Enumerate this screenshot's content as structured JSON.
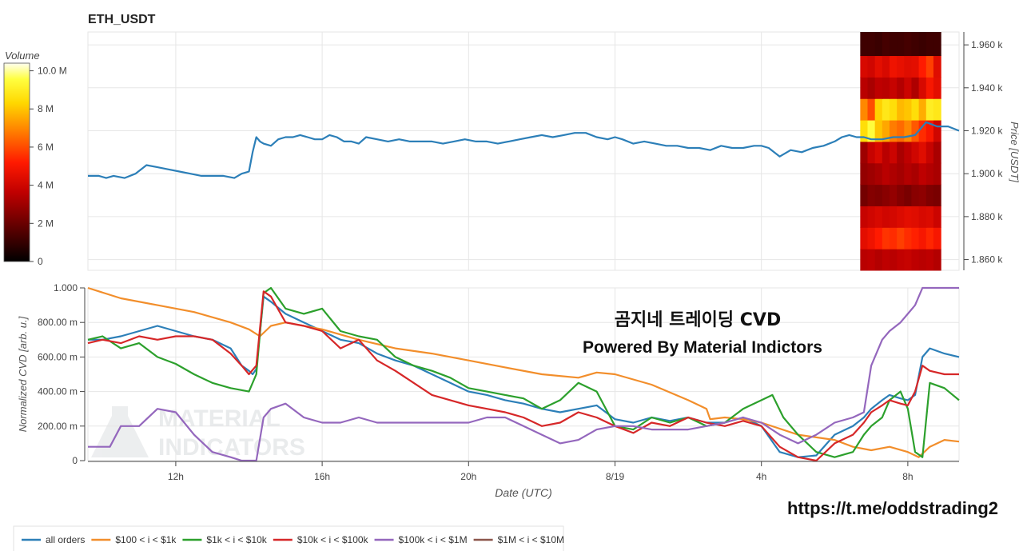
{
  "title": "ETH_USDT",
  "chart_data": [
    {
      "type": "line",
      "role": "price",
      "ylabel": "Price [USDT]",
      "ylim": [
        1.855,
        1.966
      ],
      "ytick_values": [
        1.86,
        1.88,
        1.9,
        1.92,
        1.94,
        1.96
      ],
      "ytick_labels": [
        "1.860 k",
        "1.880 k",
        "1.900 k",
        "1.920 k",
        "1.940 k",
        "1.960 k"
      ],
      "xlim": [
        9.6,
        33.4
      ],
      "grid": true,
      "series": [
        {
          "color": "#2c7fb8",
          "x": [
            9.6,
            9.9,
            10.1,
            10.3,
            10.6,
            10.9,
            11.2,
            11.5,
            11.8,
            12.1,
            12.4,
            12.7,
            13.0,
            13.3,
            13.6,
            13.8,
            14.0,
            14.1,
            14.2,
            14.3,
            14.4,
            14.6,
            14.8,
            15.0,
            15.2,
            15.4,
            15.6,
            15.8,
            16.0,
            16.2,
            16.4,
            16.6,
            16.8,
            17.0,
            17.2,
            17.5,
            17.8,
            18.1,
            18.4,
            18.7,
            19.0,
            19.3,
            19.6,
            19.9,
            20.2,
            20.5,
            20.8,
            21.1,
            21.4,
            21.7,
            22.0,
            22.3,
            22.6,
            22.9,
            23.2,
            23.5,
            23.8,
            24.0,
            24.2,
            24.5,
            24.8,
            25.1,
            25.4,
            25.7,
            26.0,
            26.3,
            26.6,
            26.9,
            27.2,
            27.5,
            27.8,
            28.0,
            28.2,
            28.5,
            28.8,
            29.1,
            29.4,
            29.7,
            30.0,
            30.2,
            30.4,
            30.6,
            30.8,
            31.0,
            31.3,
            31.6,
            31.9,
            32.2,
            32.5,
            32.8,
            33.1,
            33.4
          ],
          "y": [
            1.899,
            1.899,
            1.898,
            1.899,
            1.898,
            1.9,
            1.904,
            1.903,
            1.902,
            1.901,
            1.9,
            1.899,
            1.899,
            1.899,
            1.898,
            1.9,
            1.901,
            1.91,
            1.917,
            1.915,
            1.914,
            1.913,
            1.916,
            1.917,
            1.917,
            1.918,
            1.917,
            1.916,
            1.916,
            1.918,
            1.917,
            1.915,
            1.915,
            1.914,
            1.917,
            1.916,
            1.915,
            1.916,
            1.915,
            1.915,
            1.915,
            1.914,
            1.915,
            1.916,
            1.915,
            1.915,
            1.914,
            1.915,
            1.916,
            1.917,
            1.918,
            1.917,
            1.918,
            1.919,
            1.919,
            1.917,
            1.916,
            1.917,
            1.916,
            1.914,
            1.915,
            1.914,
            1.913,
            1.913,
            1.912,
            1.912,
            1.911,
            1.913,
            1.912,
            1.912,
            1.913,
            1.913,
            1.912,
            1.908,
            1.911,
            1.91,
            1.912,
            1.913,
            1.915,
            1.917,
            1.918,
            1.917,
            1.917,
            1.916,
            1.916,
            1.917,
            1.917,
            1.918,
            1.924,
            1.922,
            1.922,
            1.92
          ]
        }
      ]
    },
    {
      "type": "heatmap",
      "role": "volume-profile",
      "colorbar_title": "Volume",
      "colorbar_range": [
        0,
        10.4
      ],
      "colorbar_tick_values": [
        0,
        2,
        4,
        6,
        8,
        10
      ],
      "colorbar_tick_labels": [
        "0",
        "2 M",
        "4 M",
        "6 M",
        "8 M",
        "10.0 M"
      ],
      "row_low_prices": [
        1.855,
        1.865,
        1.875,
        1.885,
        1.895,
        1.905,
        1.915,
        1.925,
        1.935,
        1.945,
        1.955
      ],
      "row_high_prices": [
        1.865,
        1.875,
        1.885,
        1.895,
        1.905,
        1.915,
        1.925,
        1.935,
        1.945,
        1.955,
        1.966
      ],
      "x_start": 30.7,
      "x_end": 32.9,
      "cells": [
        [
          3.5,
          3.6,
          3.4,
          3.6,
          3.5,
          3.7,
          3.8,
          3.6,
          3.5,
          3.6,
          3.4
        ],
        [
          4.5,
          4.8,
          5.2,
          5.6,
          5.5,
          5.8,
          5.5,
          5.3,
          5.0,
          5.4,
          5.0
        ],
        [
          3.8,
          4.0,
          4.2,
          4.0,
          4.1,
          4.3,
          4.5,
          4.4,
          4.2,
          4.3,
          3.9
        ],
        [
          2.2,
          2.5,
          2.4,
          2.6,
          2.8,
          2.5,
          2.3,
          2.6,
          2.7,
          2.4,
          2.3
        ],
        [
          2.8,
          3.0,
          3.2,
          3.5,
          3.3,
          3.1,
          3.4,
          3.2,
          3.6,
          3.4,
          3.2
        ],
        [
          3.0,
          3.8,
          4.2,
          3.5,
          3.9,
          3.2,
          3.6,
          4.0,
          4.4,
          3.8,
          3.2
        ],
        [
          8.5,
          9.5,
          8.0,
          7.5,
          6.8,
          6.5,
          7.0,
          6.2,
          5.5,
          5.0,
          4.0
        ],
        [
          7.0,
          6.0,
          8.2,
          8.8,
          8.5,
          7.8,
          8.0,
          8.5,
          7.6,
          9.0,
          8.8
        ],
        [
          3.5,
          3.2,
          3.6,
          3.5,
          3.8,
          3.4,
          3.9,
          3.3,
          4.2,
          5.0,
          4.5
        ],
        [
          4.2,
          4.0,
          4.5,
          4.2,
          4.8,
          4.6,
          4.4,
          4.5,
          5.2,
          5.8,
          4.4
        ],
        [
          1.2,
          1.2,
          1.1,
          1.3,
          1.2,
          1.2,
          1.3,
          1.2,
          1.1,
          1.2,
          1.2
        ]
      ]
    },
    {
      "type": "line",
      "role": "cvd",
      "xlabel": "Date (UTC)",
      "ylabel": "Normalized CVD [arb. u.]",
      "ylim": [
        0,
        1.0
      ],
      "ytick_values": [
        0,
        0.2,
        0.4,
        0.6,
        0.8,
        1.0
      ],
      "ytick_labels": [
        "0",
        "200.00 m",
        "400.00 m",
        "600.00 m",
        "800.00 m",
        "1.000"
      ],
      "xlim": [
        9.6,
        33.4
      ],
      "xtick_values": [
        12,
        16,
        20,
        24,
        28,
        32
      ],
      "xtick_labels": [
        "12h",
        "16h",
        "20h",
        "8/19",
        "4h",
        "8h"
      ],
      "grid": true,
      "series": [
        {
          "name": "all orders",
          "color": "#2c7fb8",
          "x": [
            9.6,
            10.0,
            10.5,
            11.0,
            11.5,
            12.0,
            12.5,
            13.0,
            13.5,
            13.8,
            14.0,
            14.1,
            14.2,
            14.4,
            14.6,
            15.0,
            15.5,
            16.0,
            16.5,
            17.0,
            17.5,
            18.0,
            18.5,
            19.0,
            19.5,
            20.0,
            20.5,
            21.0,
            21.5,
            22.0,
            22.5,
            23.0,
            23.5,
            24.0,
            24.5,
            25.0,
            25.5,
            26.0,
            26.5,
            27.0,
            27.5,
            28.0,
            28.5,
            29.0,
            29.5,
            30.0,
            30.5,
            30.8,
            31.0,
            31.3,
            31.5,
            31.8,
            32.0,
            32.2,
            32.4,
            32.6,
            33.0,
            33.4
          ],
          "y": [
            0.7,
            0.7,
            0.72,
            0.75,
            0.78,
            0.75,
            0.72,
            0.7,
            0.65,
            0.55,
            0.52,
            0.5,
            0.53,
            0.95,
            0.92,
            0.85,
            0.8,
            0.75,
            0.7,
            0.68,
            0.62,
            0.58,
            0.55,
            0.5,
            0.45,
            0.4,
            0.38,
            0.35,
            0.33,
            0.3,
            0.28,
            0.3,
            0.32,
            0.24,
            0.22,
            0.25,
            0.23,
            0.25,
            0.22,
            0.22,
            0.25,
            0.2,
            0.05,
            0.02,
            0.03,
            0.15,
            0.2,
            0.25,
            0.3,
            0.35,
            0.38,
            0.36,
            0.35,
            0.38,
            0.6,
            0.65,
            0.62,
            0.6
          ]
        },
        {
          "name": "$100 < i < $1k",
          "color": "#f28e2b",
          "x": [
            9.6,
            10.5,
            11.5,
            12.5,
            13.5,
            14.0,
            14.3,
            14.6,
            15.0,
            15.5,
            16.0,
            17.0,
            18.0,
            19.0,
            20.0,
            21.0,
            22.0,
            23.0,
            23.5,
            24.0,
            25.0,
            26.0,
            26.5,
            26.6,
            27.0,
            27.5,
            28.0,
            29.0,
            30.0,
            30.5,
            31.0,
            31.5,
            32.0,
            32.3,
            32.6,
            33.0,
            33.4
          ],
          "y": [
            1.0,
            0.94,
            0.9,
            0.86,
            0.8,
            0.76,
            0.72,
            0.78,
            0.8,
            0.78,
            0.76,
            0.7,
            0.65,
            0.62,
            0.58,
            0.54,
            0.5,
            0.48,
            0.51,
            0.5,
            0.44,
            0.35,
            0.3,
            0.24,
            0.25,
            0.24,
            0.22,
            0.15,
            0.12,
            0.08,
            0.06,
            0.08,
            0.05,
            0.02,
            0.08,
            0.12,
            0.11
          ]
        },
        {
          "name": "$1k < i < $10k",
          "color": "#2ca02c",
          "x": [
            9.6,
            10.0,
            10.5,
            11.0,
            11.5,
            12.0,
            12.5,
            13.0,
            13.5,
            14.0,
            14.2,
            14.4,
            14.6,
            15.0,
            15.5,
            16.0,
            16.5,
            17.0,
            17.5,
            18.0,
            18.5,
            19.0,
            19.5,
            20.0,
            20.5,
            21.0,
            21.5,
            22.0,
            22.5,
            23.0,
            23.5,
            24.0,
            24.5,
            25.0,
            25.5,
            26.0,
            26.5,
            27.0,
            27.5,
            28.0,
            28.3,
            28.6,
            29.0,
            29.5,
            30.0,
            30.5,
            30.8,
            31.0,
            31.3,
            31.5,
            31.8,
            32.0,
            32.2,
            32.4,
            32.6,
            33.0,
            33.4
          ],
          "y": [
            0.7,
            0.72,
            0.65,
            0.68,
            0.6,
            0.56,
            0.5,
            0.45,
            0.42,
            0.4,
            0.5,
            0.97,
            1.0,
            0.88,
            0.85,
            0.88,
            0.75,
            0.72,
            0.7,
            0.6,
            0.55,
            0.52,
            0.48,
            0.42,
            0.4,
            0.38,
            0.36,
            0.3,
            0.35,
            0.45,
            0.4,
            0.2,
            0.18,
            0.25,
            0.22,
            0.25,
            0.2,
            0.22,
            0.3,
            0.35,
            0.38,
            0.25,
            0.15,
            0.05,
            0.02,
            0.05,
            0.15,
            0.2,
            0.25,
            0.35,
            0.4,
            0.3,
            0.05,
            0.02,
            0.45,
            0.42,
            0.35
          ]
        },
        {
          "name": "$10k < i < $100k",
          "color": "#d62728",
          "x": [
            9.6,
            10.0,
            10.5,
            11.0,
            11.5,
            12.0,
            12.5,
            13.0,
            13.5,
            13.8,
            14.0,
            14.2,
            14.4,
            14.6,
            15.0,
            15.5,
            16.0,
            16.5,
            17.0,
            17.5,
            18.0,
            18.5,
            19.0,
            19.5,
            20.0,
            20.5,
            21.0,
            21.5,
            22.0,
            22.5,
            23.0,
            23.5,
            24.0,
            24.5,
            25.0,
            25.5,
            26.0,
            26.5,
            27.0,
            27.5,
            28.0,
            28.5,
            29.0,
            29.5,
            30.0,
            30.5,
            30.8,
            31.0,
            31.3,
            31.5,
            31.8,
            32.0,
            32.2,
            32.4,
            32.6,
            33.0,
            33.4
          ],
          "y": [
            0.68,
            0.7,
            0.68,
            0.72,
            0.7,
            0.72,
            0.72,
            0.7,
            0.62,
            0.55,
            0.5,
            0.55,
            0.98,
            0.95,
            0.8,
            0.78,
            0.75,
            0.65,
            0.7,
            0.58,
            0.52,
            0.45,
            0.38,
            0.35,
            0.32,
            0.3,
            0.28,
            0.25,
            0.2,
            0.22,
            0.28,
            0.25,
            0.2,
            0.16,
            0.22,
            0.2,
            0.25,
            0.22,
            0.2,
            0.23,
            0.2,
            0.08,
            0.02,
            0.0,
            0.1,
            0.15,
            0.22,
            0.28,
            0.32,
            0.35,
            0.33,
            0.32,
            0.4,
            0.55,
            0.52,
            0.5,
            0.5
          ]
        },
        {
          "name": "$100k < i < $1M",
          "color": "#9467bd",
          "x": [
            9.6,
            10.2,
            10.5,
            11.0,
            11.5,
            12.0,
            12.5,
            13.0,
            13.5,
            13.8,
            14.0,
            14.2,
            14.4,
            14.6,
            15.0,
            15.5,
            16.0,
            16.5,
            17.0,
            17.5,
            18.0,
            18.5,
            19.0,
            19.5,
            20.0,
            20.5,
            21.0,
            21.5,
            22.0,
            22.5,
            23.0,
            23.5,
            24.0,
            24.5,
            25.0,
            25.5,
            26.0,
            26.5,
            27.0,
            27.5,
            28.0,
            28.5,
            29.0,
            29.5,
            30.0,
            30.5,
            30.8,
            31.0,
            31.3,
            31.5,
            31.8,
            32.0,
            32.2,
            32.4,
            33.0,
            33.4
          ],
          "y": [
            0.08,
            0.08,
            0.2,
            0.2,
            0.3,
            0.28,
            0.15,
            0.05,
            0.02,
            0.0,
            0.0,
            0.0,
            0.25,
            0.3,
            0.33,
            0.25,
            0.22,
            0.22,
            0.25,
            0.22,
            0.22,
            0.22,
            0.22,
            0.22,
            0.22,
            0.25,
            0.25,
            0.2,
            0.15,
            0.1,
            0.12,
            0.18,
            0.2,
            0.2,
            0.18,
            0.18,
            0.18,
            0.2,
            0.22,
            0.25,
            0.22,
            0.15,
            0.1,
            0.15,
            0.22,
            0.25,
            0.28,
            0.55,
            0.7,
            0.75,
            0.8,
            0.85,
            0.9,
            1.0,
            1.0,
            1.0
          ]
        },
        {
          "name": "$1M < i < $10M",
          "color": "#8c564b",
          "x": [],
          "y": []
        }
      ]
    }
  ],
  "overlay_text": {
    "line1": "곰지네 트레이딩 CVD",
    "line2": "Powered By Material Indictors",
    "link": "https://t.me/oddstrading2",
    "watermark_line1": "MATERIAL",
    "watermark_line2": "INDICATORS"
  },
  "colors": {
    "grid": "#e6e6e6",
    "axis": "#444444"
  }
}
